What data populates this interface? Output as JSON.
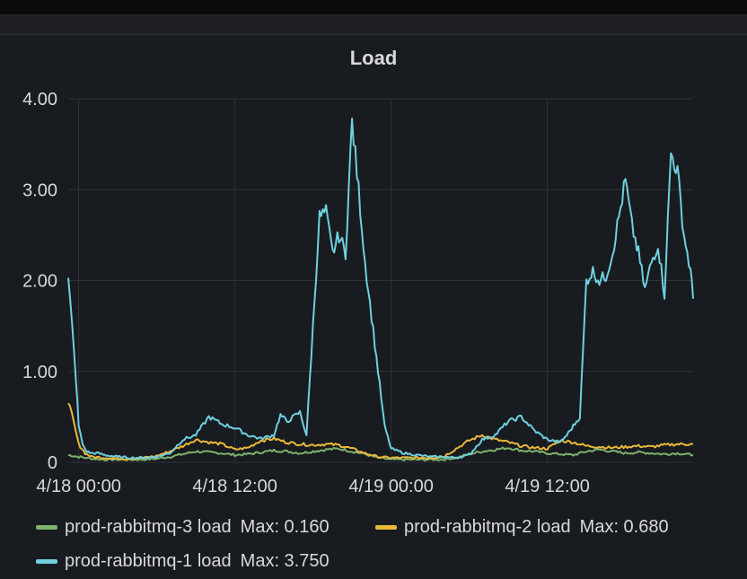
{
  "panel": {
    "title": "Load"
  },
  "chart_data": {
    "type": "line",
    "title": "Load",
    "xlabel": "",
    "ylabel": "",
    "x_ticks": [
      "4/18 00:00",
      "4/18 12:00",
      "4/19 00:00",
      "4/19 12:00"
    ],
    "x_tick_hours": [
      0,
      12,
      24,
      36
    ],
    "x_range_hours": [
      -0.8,
      47.2
    ],
    "y_ticks": [
      "0",
      "1.00",
      "2.00",
      "3.00",
      "4.00"
    ],
    "ylim": [
      0,
      4
    ],
    "grid": true,
    "legend_position": "bottom",
    "series": [
      {
        "name": "prod-rabbitmq-3 load",
        "max_label": "Max: 0.160",
        "color": "#7eb26d",
        "x": [
          -0.8,
          0,
          1,
          2,
          3,
          4,
          5,
          6,
          7,
          8,
          9,
          10,
          11,
          12,
          13,
          14,
          15,
          16,
          17,
          18,
          19,
          20,
          21,
          22,
          23,
          24,
          25,
          26,
          27,
          28,
          29,
          30,
          31,
          32,
          33,
          34,
          35,
          36,
          37,
          38,
          39,
          40,
          41,
          42,
          43,
          44,
          45,
          46,
          47.2
        ],
        "values": [
          0.08,
          0.06,
          0.04,
          0.03,
          0.03,
          0.03,
          0.03,
          0.04,
          0.06,
          0.09,
          0.12,
          0.11,
          0.1,
          0.08,
          0.09,
          0.11,
          0.13,
          0.12,
          0.1,
          0.12,
          0.14,
          0.15,
          0.12,
          0.09,
          0.05,
          0.03,
          0.03,
          0.03,
          0.03,
          0.03,
          0.05,
          0.09,
          0.12,
          0.14,
          0.16,
          0.13,
          0.12,
          0.1,
          0.09,
          0.08,
          0.12,
          0.14,
          0.12,
          0.1,
          0.11,
          0.1,
          0.09,
          0.1,
          0.08
        ]
      },
      {
        "name": "prod-rabbitmq-2 load",
        "max_label": "Max: 0.680",
        "color": "#eab839",
        "x": [
          -0.8,
          -0.4,
          0,
          0.5,
          1,
          2,
          3,
          4,
          5,
          6,
          7,
          8,
          9,
          10,
          11,
          12,
          13,
          14,
          15,
          16,
          17,
          18,
          19,
          20,
          21,
          22,
          23,
          24,
          25,
          26,
          27,
          28,
          29,
          30,
          31,
          32,
          33,
          34,
          35,
          36,
          37,
          38,
          39,
          40,
          41,
          42,
          43,
          44,
          45,
          46,
          47.2
        ],
        "values": [
          0.68,
          0.45,
          0.2,
          0.1,
          0.06,
          0.05,
          0.04,
          0.04,
          0.05,
          0.07,
          0.12,
          0.18,
          0.25,
          0.22,
          0.2,
          0.14,
          0.16,
          0.24,
          0.26,
          0.22,
          0.2,
          0.19,
          0.2,
          0.19,
          0.15,
          0.1,
          0.06,
          0.05,
          0.05,
          0.05,
          0.05,
          0.06,
          0.15,
          0.24,
          0.3,
          0.25,
          0.22,
          0.18,
          0.16,
          0.15,
          0.24,
          0.22,
          0.18,
          0.17,
          0.16,
          0.17,
          0.18,
          0.17,
          0.19,
          0.2,
          0.2
        ]
      },
      {
        "name": "prod-rabbitmq-1 load",
        "max_label": "Max: 3.750",
        "color": "#6ed0e0",
        "x": [
          -0.8,
          -0.5,
          -0.2,
          0,
          0.3,
          0.6,
          1,
          1.5,
          2,
          2.5,
          3,
          4,
          5,
          6,
          7,
          8,
          9,
          10,
          11,
          12,
          13,
          14,
          15,
          15.5,
          16,
          17,
          17.5,
          18,
          18.5,
          19,
          19.5,
          20,
          20.5,
          21,
          21.5,
          22,
          22.5,
          23,
          23.5,
          24,
          25,
          26,
          27,
          28,
          29,
          30,
          31,
          32,
          33,
          34,
          35,
          36,
          37,
          37.5,
          38,
          38.5,
          39,
          39.5,
          40,
          40.5,
          41,
          41.5,
          42,
          42.5,
          43,
          43.5,
          44,
          44.5,
          45,
          45.5,
          46,
          46.5,
          47,
          47.2
        ],
        "values": [
          2.0,
          1.5,
          0.9,
          0.4,
          0.2,
          0.12,
          0.1,
          0.1,
          0.08,
          0.07,
          0.06,
          0.05,
          0.05,
          0.06,
          0.1,
          0.25,
          0.3,
          0.5,
          0.42,
          0.38,
          0.3,
          0.26,
          0.3,
          0.52,
          0.45,
          0.55,
          0.3,
          1.5,
          2.7,
          2.75,
          2.3,
          2.5,
          2.3,
          3.75,
          3.0,
          2.2,
          1.6,
          1.0,
          0.4,
          0.15,
          0.1,
          0.08,
          0.06,
          0.06,
          0.05,
          0.08,
          0.25,
          0.3,
          0.45,
          0.5,
          0.35,
          0.25,
          0.22,
          0.3,
          0.4,
          0.5,
          2.0,
          2.1,
          2.0,
          2.05,
          2.3,
          2.7,
          3.1,
          2.6,
          2.3,
          1.9,
          2.2,
          2.4,
          1.85,
          3.4,
          3.2,
          2.5,
          2.1,
          1.8
        ]
      }
    ]
  }
}
